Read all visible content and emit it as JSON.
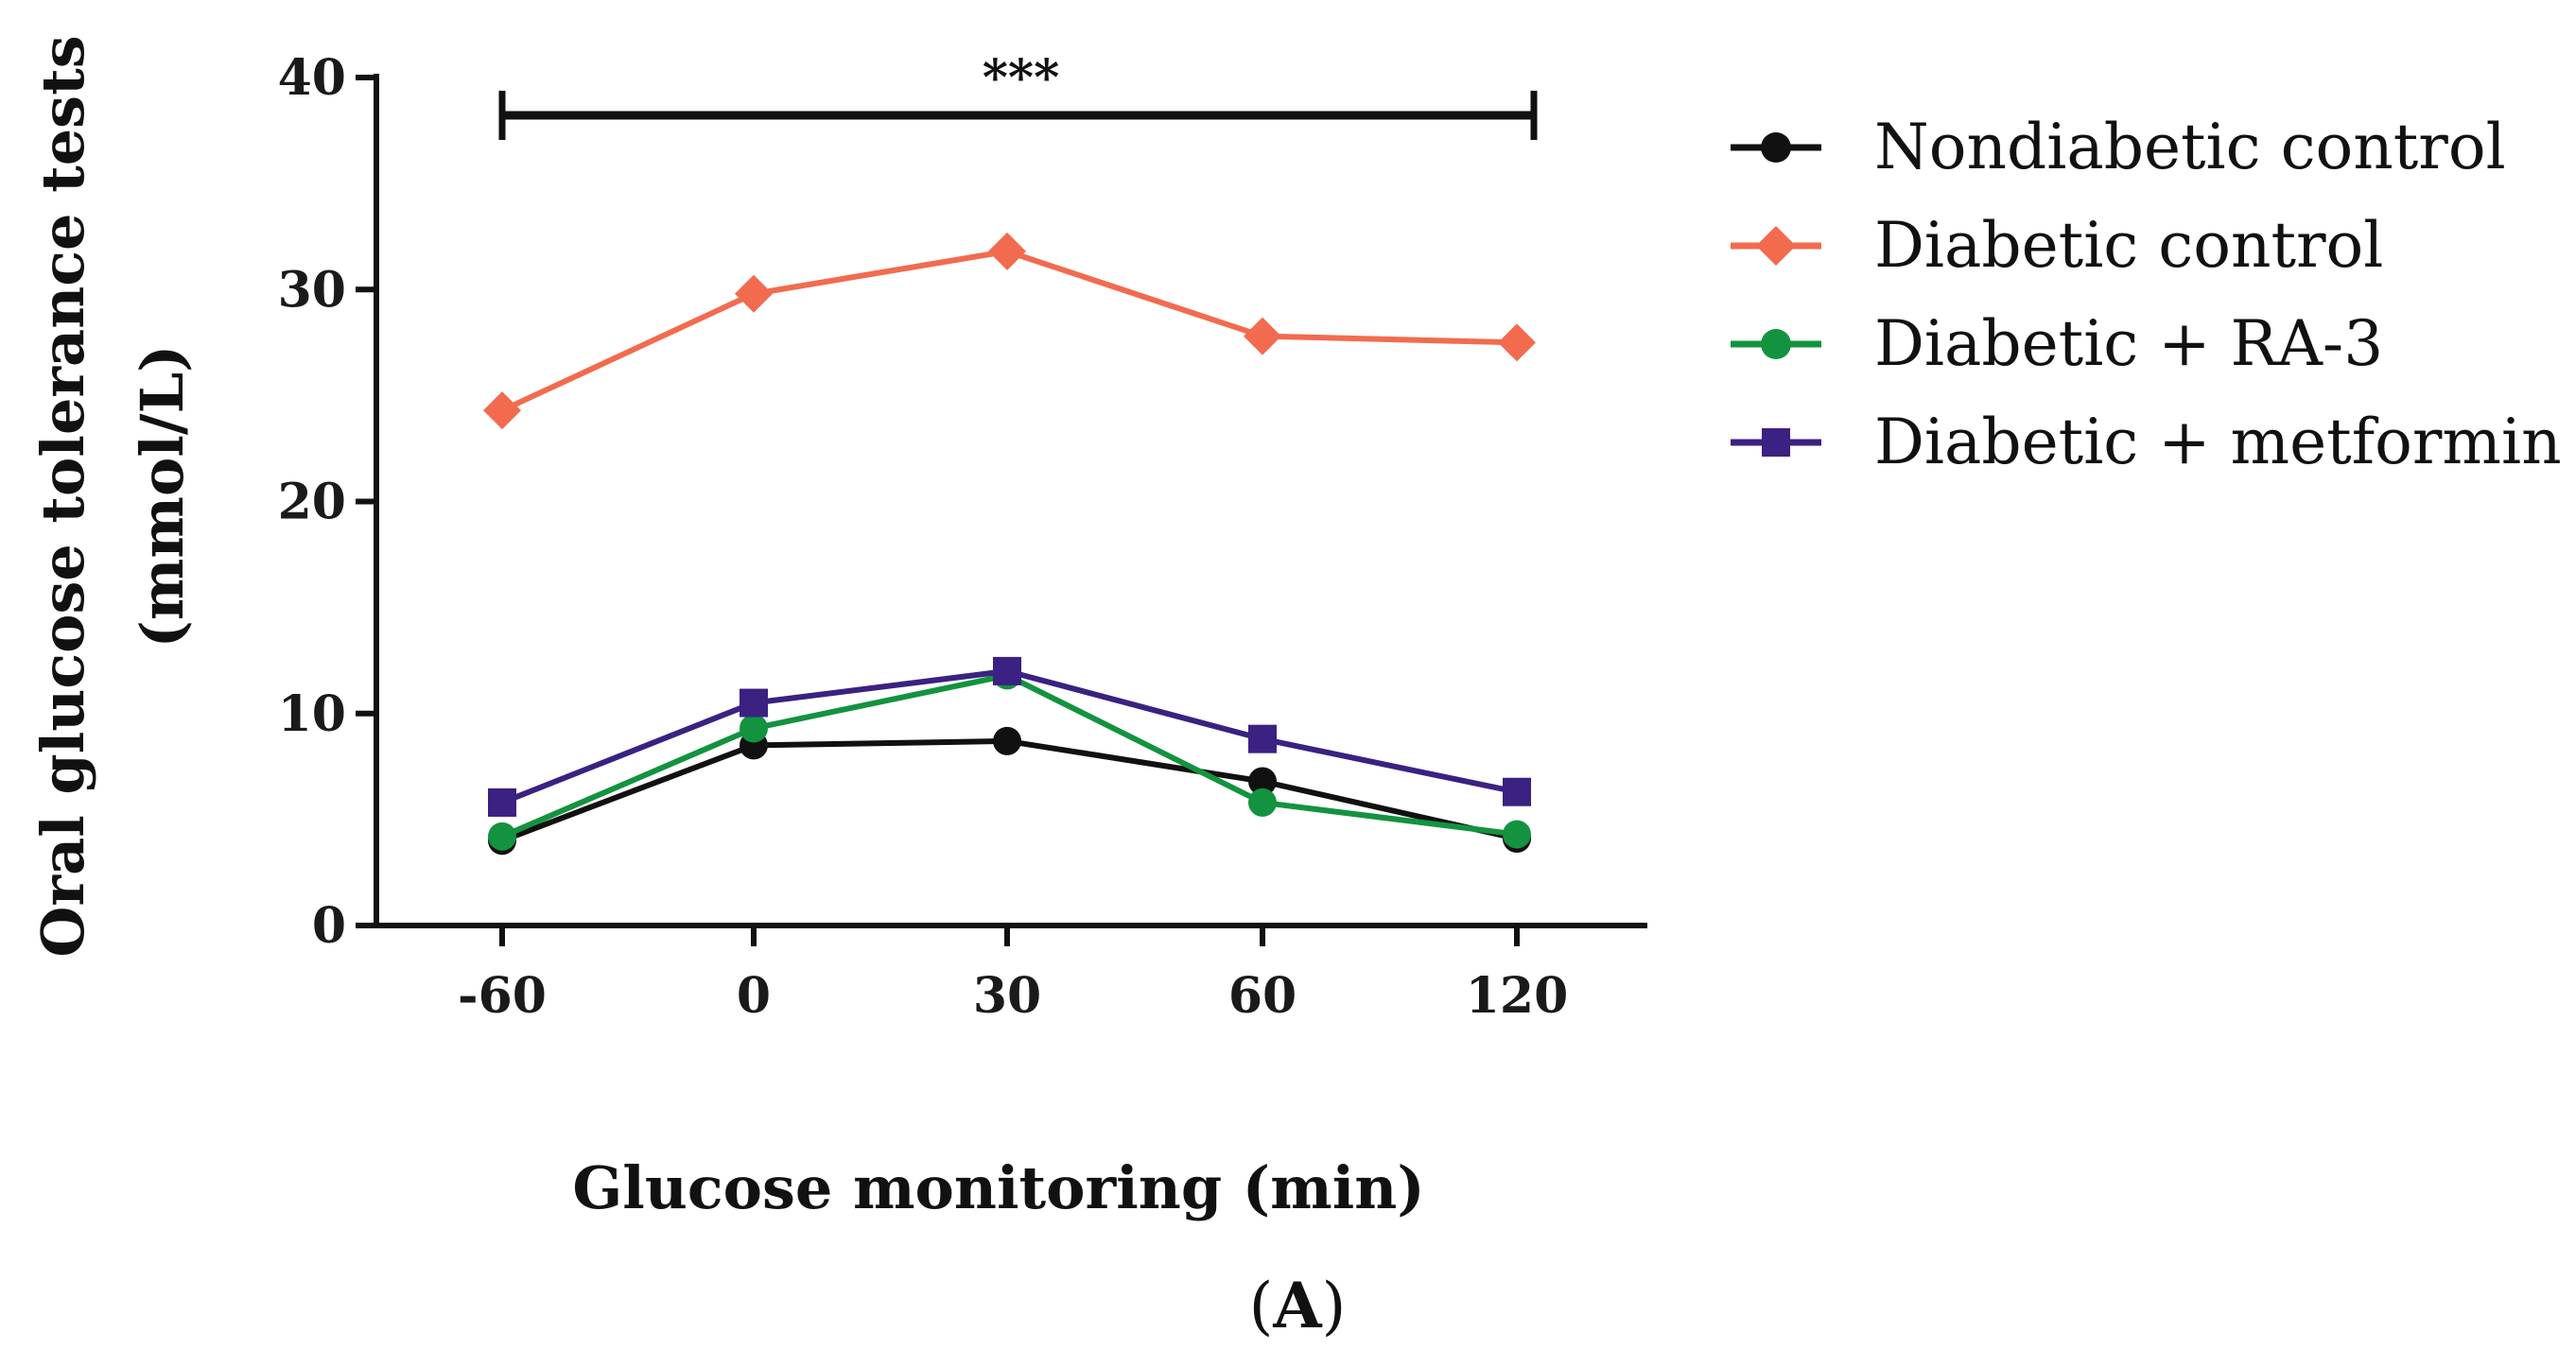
{
  "chart_data": {
    "type": "line",
    "title": "",
    "xlabel": "Glucose monitoring (min)",
    "ylabel_line1": "Oral glucose tolerance tests",
    "ylabel_line2": "(mmol/L)",
    "categories": [
      "-60",
      "0",
      "30",
      "60",
      "120"
    ],
    "ylim": [
      0,
      40
    ],
    "yticks": [
      "0",
      "10",
      "20",
      "30",
      "40"
    ],
    "legend_position": "top-right",
    "series": [
      {
        "name": "Nondiabetic control",
        "color": "#111111",
        "marker": "circle",
        "values": [
          4.0,
          8.5,
          8.7,
          6.8,
          4.1
        ]
      },
      {
        "name": "Diabetic control",
        "color": "#f26b4f",
        "marker": "diamond",
        "values": [
          24.3,
          29.8,
          31.8,
          27.8,
          27.5
        ]
      },
      {
        "name": "Diabetic + RA-3",
        "color": "#13933f",
        "marker": "circle",
        "values": [
          4.2,
          9.3,
          11.8,
          5.8,
          4.3
        ]
      },
      {
        "name": "Diabetic + metformin",
        "color": "#3b2181",
        "marker": "square",
        "values": [
          5.8,
          10.5,
          12.0,
          8.8,
          6.3
        ]
      }
    ],
    "significance": {
      "label": "***",
      "from_category": "-60",
      "to_category": "120"
    },
    "panel_label": "(A)"
  }
}
